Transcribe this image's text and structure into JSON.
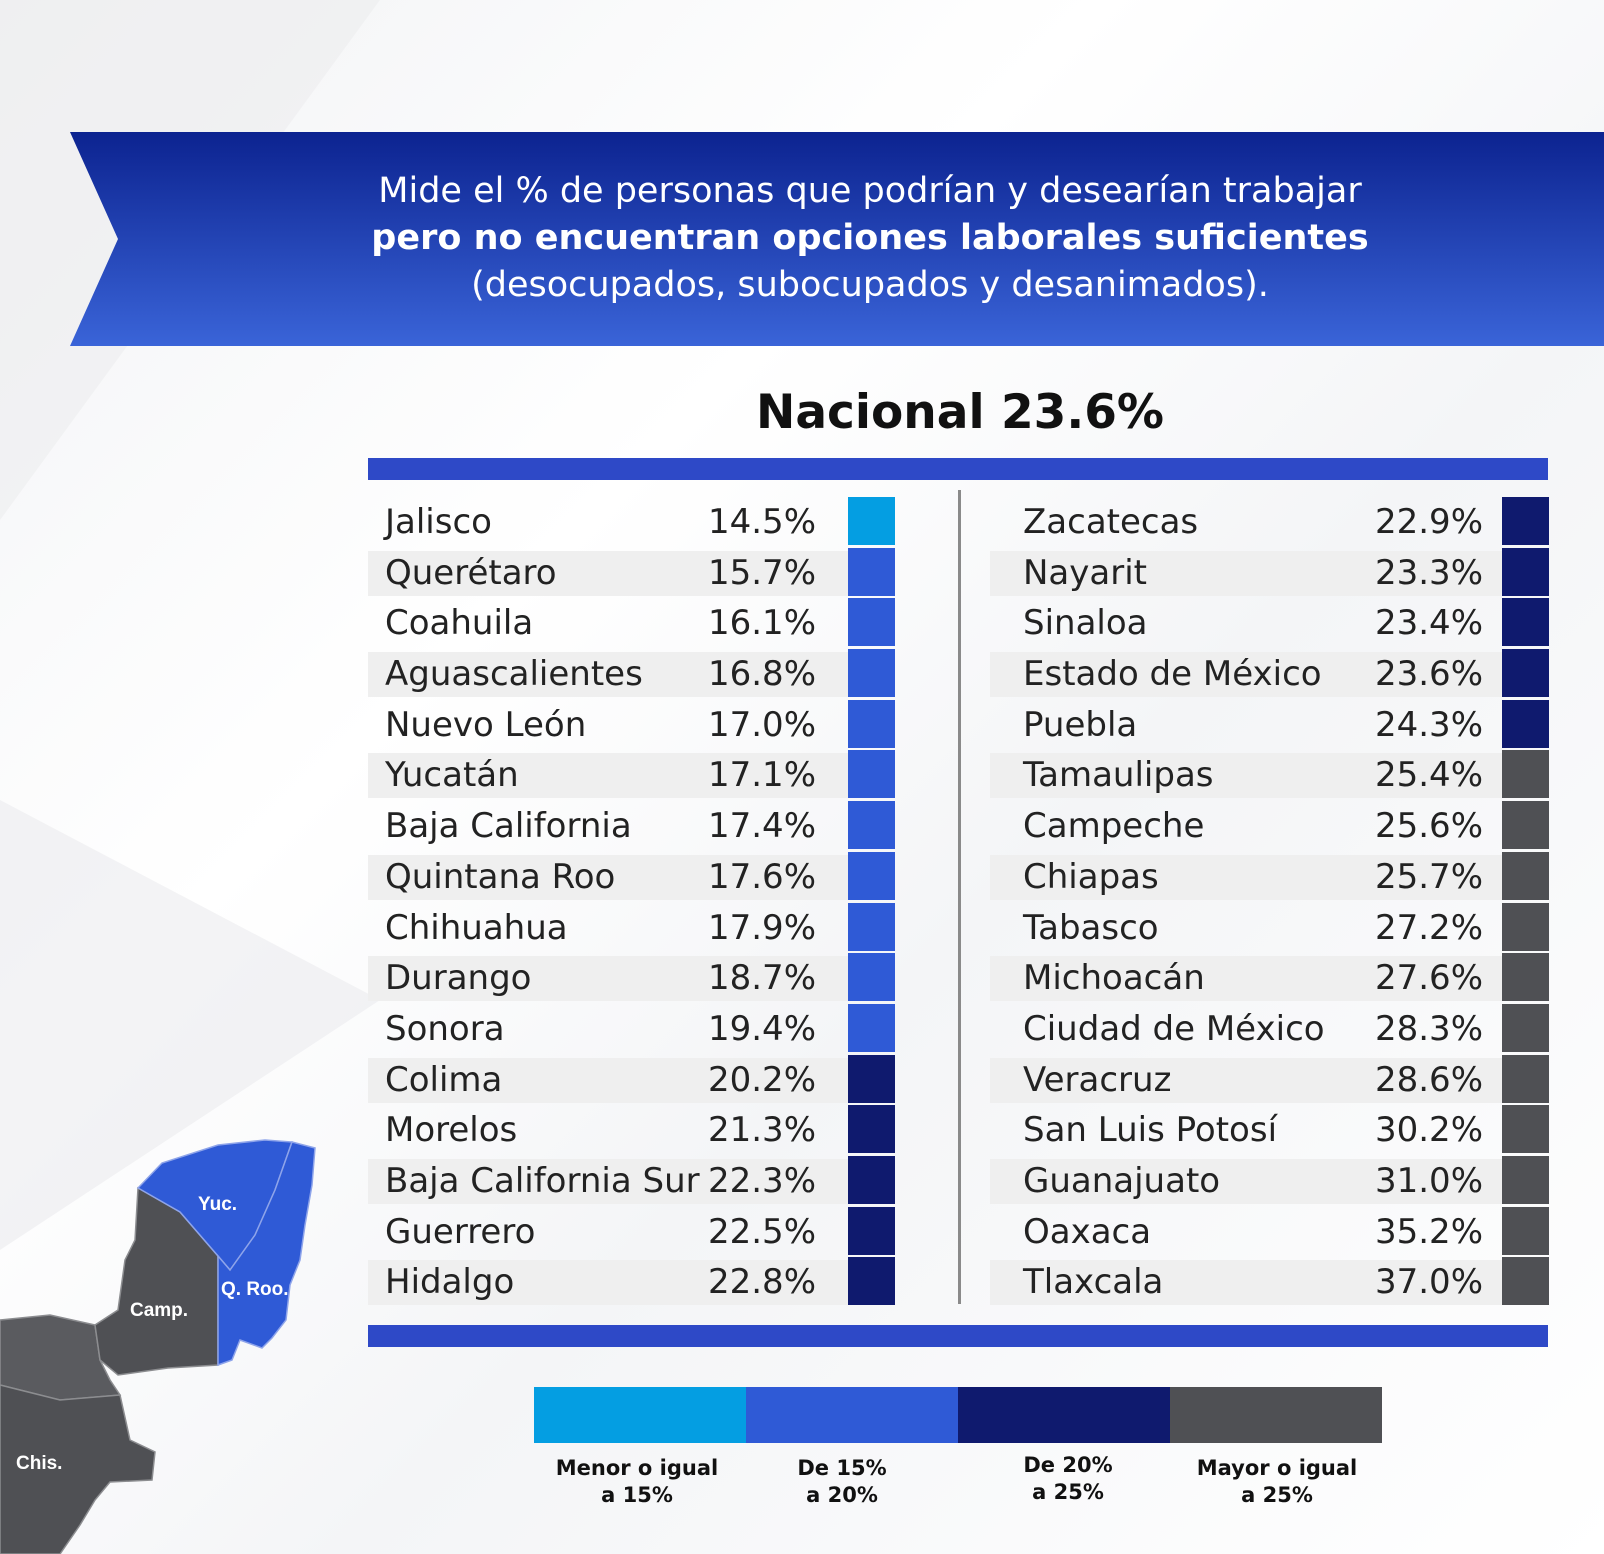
{
  "banner": {
    "line1": "Mide el % de personas que podrían y desearían trabajar",
    "line2": "pero no encuentran opciones laborales suficientes",
    "line3": "(desocupados, subocupados y desanimados)."
  },
  "colors": {
    "banner_dark": "#0c2390",
    "banner_light": "#3a64d8",
    "accent_bar": "#2e49c7",
    "cat_le15": "#049ee2",
    "cat_15_20": "#2f5ad6",
    "cat_20_25": "#0f1a6e",
    "cat_ge25": "#4f5054"
  },
  "chart_data": {
    "type": "table",
    "title": "Nacional 23.6%",
    "unit": "%",
    "categories": [
      {
        "label_1": "Menor o igual",
        "label_2": "a 15%",
        "color": "#049ee2"
      },
      {
        "label_1": "De 15%",
        "label_2": "a 20%",
        "color": "#2f5ad6"
      },
      {
        "label_1": "De 20%",
        "label_2": "a 25%",
        "color": "#0f1a6e"
      },
      {
        "label_1": "Mayor o igual",
        "label_2": "a 25%",
        "color": "#4f5054"
      }
    ],
    "rows": [
      {
        "name": "Jalisco",
        "value": "14.5%",
        "category": 0
      },
      {
        "name": "Querétaro",
        "value": "15.7%",
        "category": 1
      },
      {
        "name": "Coahuila",
        "value": "16.1%",
        "category": 1
      },
      {
        "name": "Aguascalientes",
        "value": "16.8%",
        "category": 1
      },
      {
        "name": "Nuevo León",
        "value": "17.0%",
        "category": 1
      },
      {
        "name": "Yucatán",
        "value": "17.1%",
        "category": 1
      },
      {
        "name": "Baja California",
        "value": "17.4%",
        "category": 1
      },
      {
        "name": "Quintana Roo",
        "value": "17.6%",
        "category": 1
      },
      {
        "name": "Chihuahua",
        "value": "17.9%",
        "category": 1
      },
      {
        "name": "Durango",
        "value": "18.7%",
        "category": 1
      },
      {
        "name": "Sonora",
        "value": "19.4%",
        "category": 1
      },
      {
        "name": "Colima",
        "value": "20.2%",
        "category": 2
      },
      {
        "name": "Morelos",
        "value": "21.3%",
        "category": 2
      },
      {
        "name": "Baja California Sur",
        "value": "22.3%",
        "category": 2
      },
      {
        "name": "Guerrero",
        "value": "22.5%",
        "category": 2
      },
      {
        "name": "Hidalgo",
        "value": "22.8%",
        "category": 2
      },
      {
        "name": "Zacatecas",
        "value": "22.9%",
        "category": 2
      },
      {
        "name": "Nayarit",
        "value": "23.3%",
        "category": 2
      },
      {
        "name": "Sinaloa",
        "value": "23.4%",
        "category": 2
      },
      {
        "name": "Estado de México",
        "value": "23.6%",
        "category": 2
      },
      {
        "name": "Puebla",
        "value": "24.3%",
        "category": 2
      },
      {
        "name": "Tamaulipas",
        "value": "25.4%",
        "category": 3
      },
      {
        "name": "Campeche",
        "value": "25.6%",
        "category": 3
      },
      {
        "name": "Chiapas",
        "value": "25.7%",
        "category": 3
      },
      {
        "name": "Tabasco",
        "value": "27.2%",
        "category": 3
      },
      {
        "name": "Michoacán",
        "value": "27.6%",
        "category": 3
      },
      {
        "name": "Ciudad de México",
        "value": "28.3%",
        "category": 3
      },
      {
        "name": "Veracruz",
        "value": "28.6%",
        "category": 3
      },
      {
        "name": "San Luis Potosí",
        "value": "30.2%",
        "category": 3
      },
      {
        "name": "Guanajuato",
        "value": "31.0%",
        "category": 3
      },
      {
        "name": "Oaxaca",
        "value": "35.2%",
        "category": 3
      },
      {
        "name": "Tlaxcala",
        "value": "37.0%",
        "category": 3
      }
    ]
  },
  "map": {
    "labels": {
      "yuc": "Yuc.",
      "qroo": "Q. Roo.",
      "camp": "Camp.",
      "chis": "Chis."
    }
  }
}
